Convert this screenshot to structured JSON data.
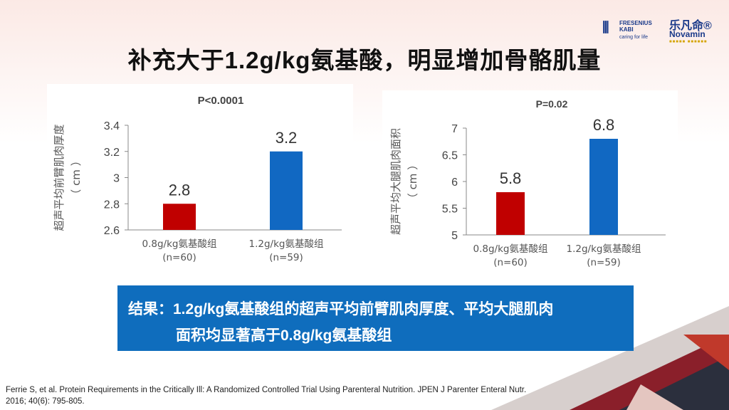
{
  "slide": {
    "title": "补充大于1.2g/kg氨基酸，明显增加骨骼肌量",
    "result_line1": "结果：1.2g/kg氨基酸组的超声平均前臂肌肉厚度、平均大腿肌肉",
    "result_line2": "面积均显著高于0.8g/kg氨基酸组",
    "citation_line1": "Ferrie S, et al. Protein Requirements in the Critically Ill: A Randomized Controlled Trial Using Parenteral Nutrition. JPEN J Parenter Enteral Nutr.",
    "citation_line2": "2016; 40(6): 795-805."
  },
  "logos": {
    "fresenius_mark": "⦀",
    "fresenius_name_1": "FRESENIUS",
    "fresenius_name_2": "KABI",
    "fresenius_tagline": "caring for life",
    "novamin_cn": "乐凡命®",
    "novamin_en": "Novamin",
    "novamin_dots": "■■■■■ ■■■■■■"
  },
  "colors": {
    "low_group": "#c00000",
    "high_group": "#1168c2",
    "result_box": "#0f6dbd"
  },
  "chart_data": [
    {
      "type": "bar",
      "title": "P<0.0001",
      "ylabel": "超声平均前臂肌肉厚度 （ cm ）",
      "categories": [
        "0.8g/kg氨基酸组\n(n=60)",
        "1.2g/kg氨基酸组\n(n=59)"
      ],
      "values": [
        2.8,
        3.2
      ],
      "data_labels": [
        "2.8",
        "3.2"
      ],
      "ylim": [
        2.6,
        3.4
      ],
      "yticks": [
        2.6,
        2.8,
        3,
        3.2,
        3.4
      ],
      "ytick_labels": [
        "2.6",
        "2.8",
        "3",
        "3.2",
        "3.4"
      ],
      "bar_colors": [
        "#c00000",
        "#1168c2"
      ],
      "grid": false
    },
    {
      "type": "bar",
      "title": "P=0.02",
      "ylabel": "超声平均大腿肌肉面积 （ cm ）",
      "categories": [
        "0.8g/kg氨基酸组\n(n=60)",
        "1.2g/kg氨基酸组\n(n=59)"
      ],
      "values": [
        5.8,
        6.8
      ],
      "data_labels": [
        "5.8",
        "6.8"
      ],
      "ylim": [
        5,
        7
      ],
      "yticks": [
        5,
        5.5,
        6,
        6.5,
        7
      ],
      "ytick_labels": [
        "5",
        "5.5",
        "6",
        "6.5",
        "7"
      ],
      "bar_colors": [
        "#c00000",
        "#1168c2"
      ],
      "grid": false
    }
  ]
}
